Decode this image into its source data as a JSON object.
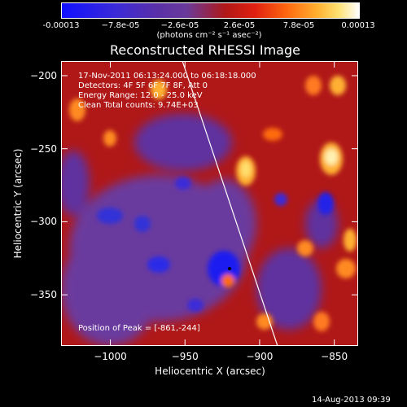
{
  "colorbar": {
    "ticks": [
      "-0.00013",
      "−7.8e-05",
      "−2.6e-05",
      "2.6e-05",
      "7.8e-05",
      "0.00013"
    ],
    "units": "(photons cm⁻² s⁻¹ asec⁻²)"
  },
  "info": {
    "line1": "17-Nov-2011 06:13:24.000 to 06:18:18.000",
    "line2": "Detectors: 4F 5F 6F 7F 8F, Att 0",
    "line3": "Energy Range: 12.0 - 25.0 keV",
    "line4": "Clean    Total counts: 9.74E+03",
    "peak": "Position of Peak = [-861,-244]"
  },
  "timestamp": "14-Aug-2013 09:39",
  "chart_data": {
    "type": "heatmap",
    "title": "Reconstructed RHESSI Image",
    "xlabel": "Heliocentric X (arcsec)",
    "ylabel": "Heliocentric Y (arcsec)",
    "xlim": [
      -1033,
      -834
    ],
    "ylim": [
      -385,
      -190
    ],
    "x_ticks": [
      "−1000",
      "−950",
      "−900",
      "−850"
    ],
    "x_tick_values": [
      -1000,
      -950,
      -900,
      -850
    ],
    "y_ticks": [
      "−200",
      "−250",
      "−300",
      "−350"
    ],
    "y_tick_values": [
      -200,
      -250,
      -300,
      -350
    ],
    "colorbar_range": [
      -0.00013,
      0.00013
    ],
    "peak_position": [
      -861,
      -244
    ],
    "limb_line": [
      [
        -955,
        -180
      ],
      [
        -888,
        -385
      ]
    ]
  }
}
